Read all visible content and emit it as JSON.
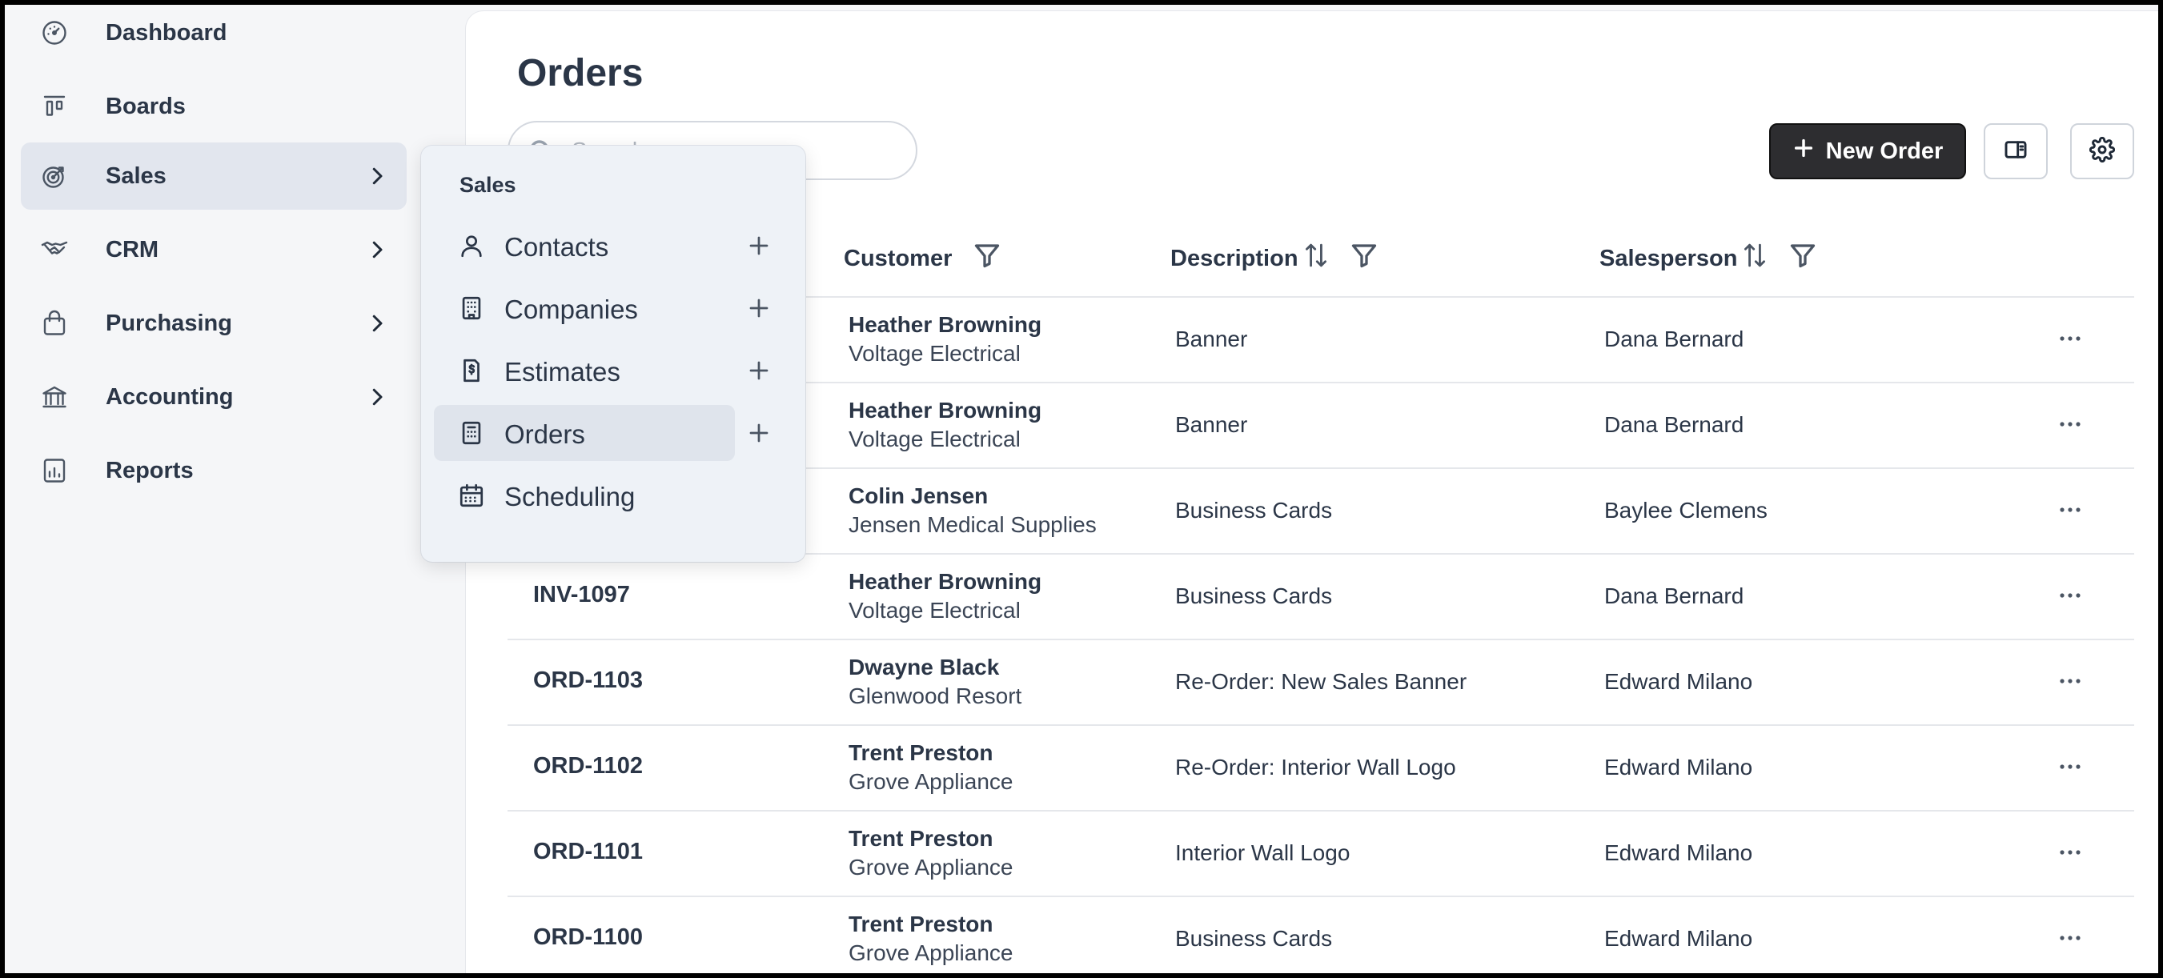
{
  "sidebar": {
    "items": [
      {
        "label": "Dashboard",
        "icon": "dashboard-icon"
      },
      {
        "label": "Boards",
        "icon": "boards-icon"
      },
      {
        "label": "Sales",
        "icon": "target-icon",
        "active": true,
        "has_submenu": true
      },
      {
        "label": "CRM",
        "icon": "handshake-icon",
        "has_submenu": true
      },
      {
        "label": "Purchasing",
        "icon": "shopping-bag-icon",
        "has_submenu": true
      },
      {
        "label": "Accounting",
        "icon": "bank-icon",
        "has_submenu": true
      },
      {
        "label": "Reports",
        "icon": "chart-icon"
      }
    ]
  },
  "flyout": {
    "title": "Sales",
    "items": [
      {
        "label": "Contacts",
        "icon": "user-icon",
        "addable": true
      },
      {
        "label": "Companies",
        "icon": "building-icon",
        "addable": true
      },
      {
        "label": "Estimates",
        "icon": "estimate-doc-icon",
        "addable": true
      },
      {
        "label": "Orders",
        "icon": "order-doc-icon",
        "addable": true,
        "active": true
      },
      {
        "label": "Scheduling",
        "icon": "calendar-icon",
        "addable": false
      }
    ]
  },
  "main": {
    "title": "Orders",
    "search": {
      "placeholder": "Search",
      "value": ""
    },
    "new_order_label": "New Order",
    "columns": {
      "customer": "Customer",
      "description": "Description",
      "salesperson": "Salesperson"
    },
    "rows": [
      {
        "id": "",
        "name": "Heather Browning",
        "company": "Voltage Electrical",
        "description": "Banner",
        "salesperson": "Dana Bernard"
      },
      {
        "id": "",
        "name": "Heather Browning",
        "company": "Voltage Electrical",
        "description": "Banner",
        "salesperson": "Dana Bernard"
      },
      {
        "id": "",
        "name": "Colin Jensen",
        "company": "Jensen Medical Supplies",
        "description": "Business Cards",
        "salesperson": "Baylee Clemens"
      },
      {
        "id": "INV-1097",
        "name": "Heather Browning",
        "company": "Voltage Electrical",
        "description": "Business Cards",
        "salesperson": "Dana Bernard"
      },
      {
        "id": "ORD-1103",
        "name": "Dwayne Black",
        "company": "Glenwood Resort",
        "description": "Re-Order: New Sales Banner",
        "salesperson": "Edward Milano"
      },
      {
        "id": "ORD-1102",
        "name": "Trent Preston",
        "company": "Grove Appliance",
        "description": "Re-Order: Interior Wall Logo",
        "salesperson": "Edward Milano"
      },
      {
        "id": "ORD-1101",
        "name": "Trent Preston",
        "company": "Grove Appliance",
        "description": "Interior Wall Logo",
        "salesperson": "Edward Milano"
      },
      {
        "id": "ORD-1100",
        "name": "Trent Preston",
        "company": "Grove Appliance",
        "description": "Business Cards",
        "salesperson": "Edward Milano"
      }
    ]
  },
  "colors": {
    "primary_button": "#2d2d30",
    "sidebar_bg": "#f5f6f8",
    "active_item_bg": "#e2e6ee",
    "flyout_bg": "#eef2f7"
  }
}
